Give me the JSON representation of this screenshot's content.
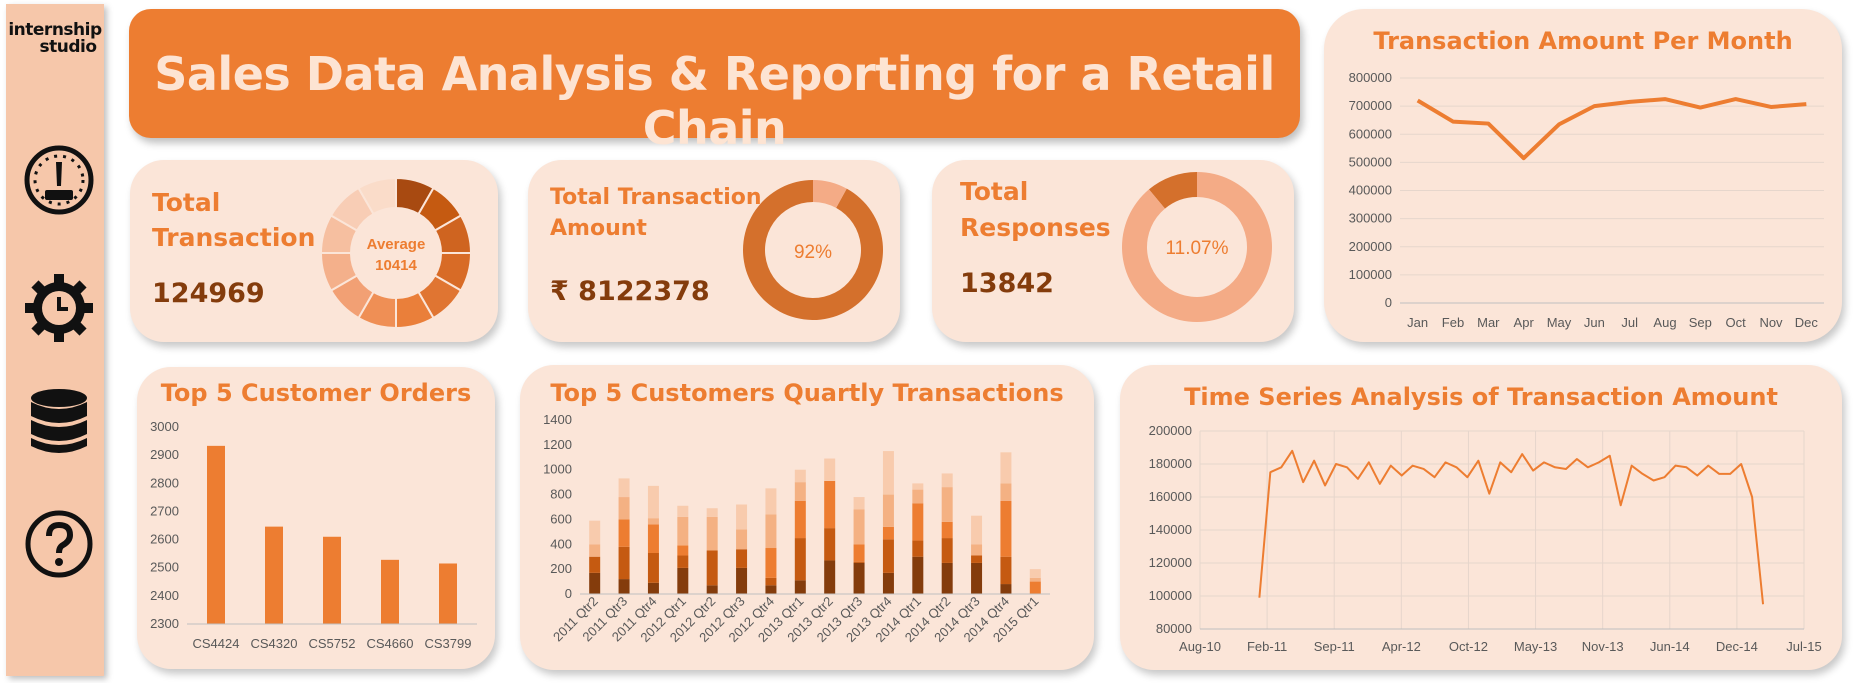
{
  "app": {
    "title": "Sales Data Analysis & Reporting for a Retail Chain",
    "logo_line1": "internship",
    "logo_line2": "studio"
  },
  "sidebar": {
    "icons": [
      "dashboard-gauge-icon",
      "settings-clock-icon",
      "database-icon",
      "help-icon"
    ]
  },
  "colors": {
    "accent": "#ed7d31",
    "dark": "#843c0c",
    "card": "#fbe5d8",
    "sidebar": "#f6c7aa",
    "title_text": "#fde4d3"
  },
  "kpis": {
    "total_transaction": {
      "label_line1": "Total",
      "label_line2": "Transaction",
      "value": "124969",
      "center_line1": "Average",
      "center_line2": "10414"
    },
    "total_amount": {
      "label_line1": "Total Transaction",
      "label_line2": "Amount",
      "value": "₹ 8122378",
      "center": "92%",
      "fraction": 0.92
    },
    "total_responses": {
      "label_line1": "Total",
      "label_line2": "Responses",
      "value": "13842",
      "center": "11.07%",
      "fraction": 0.1107
    }
  },
  "chart_data": [
    {
      "id": "monthly",
      "type": "line",
      "title": "Transaction Amount Per Month",
      "categories": [
        "Jan",
        "Feb",
        "Mar",
        "Apr",
        "May",
        "Jun",
        "Jul",
        "Aug",
        "Sep",
        "Oct",
        "Nov",
        "Dec"
      ],
      "values": [
        720000,
        645000,
        638000,
        515000,
        635000,
        700000,
        715000,
        725000,
        695000,
        725000,
        697000,
        707000
      ],
      "ylim": [
        0,
        800000
      ],
      "yticks": [
        "0",
        "100000",
        "200000",
        "300000",
        "400000",
        "500000",
        "600000",
        "700000",
        "800000"
      ],
      "grid": true,
      "color": "#ed7d31"
    },
    {
      "id": "top5",
      "type": "bar",
      "title": "Top 5 Customer Orders",
      "categories": [
        "CS4424",
        "CS4320",
        "CS5752",
        "CS4660",
        "CS3799"
      ],
      "values": [
        2933,
        2646,
        2610,
        2528,
        2515
      ],
      "ylim": [
        2300,
        3000
      ],
      "yticks": [
        "2300",
        "2400",
        "2500",
        "2600",
        "2700",
        "2800",
        "2900",
        "3000"
      ],
      "color": "#ed7d31"
    },
    {
      "id": "quarterly",
      "type": "bar",
      "stacked": true,
      "title": "Top 5 Customers Quartly Transactions",
      "categories": [
        "2011 Qtr2",
        "2011 Qtr3",
        "2011 Qtr4",
        "2012 Qtr1",
        "2012 Qtr2",
        "2012 Qtr3",
        "2012 Qtr4",
        "2013 Qtr1",
        "2013 Qtr2",
        "2013 Qtr3",
        "2013 Qtr4",
        "2014 Qtr1",
        "2014 Qtr2",
        "2014 Qtr3",
        "2014 Qtr4",
        "2015 Qtr1"
      ],
      "series": [
        {
          "values": [
            170,
            120,
            90,
            210,
            70,
            210,
            70,
            110,
            270,
            250,
            170,
            300,
            250,
            250,
            80,
            0
          ],
          "color": "#843c0c"
        },
        {
          "values": [
            130,
            260,
            240,
            100,
            280,
            150,
            60,
            340,
            260,
            10,
            270,
            130,
            200,
            60,
            220,
            0
          ],
          "color": "#c55a11"
        },
        {
          "values": [
            0,
            220,
            230,
            80,
            0,
            0,
            240,
            300,
            380,
            140,
            100,
            300,
            130,
            0,
            450,
            100
          ],
          "color": "#ed7d31"
        },
        {
          "values": [
            100,
            180,
            50,
            230,
            270,
            160,
            270,
            150,
            0,
            280,
            260,
            110,
            280,
            90,
            140,
            30
          ],
          "color": "#f4b183"
        },
        {
          "values": [
            190,
            150,
            260,
            90,
            70,
            200,
            210,
            100,
            180,
            100,
            350,
            50,
            110,
            230,
            250,
            70
          ],
          "color": "#f8cbad"
        }
      ],
      "ylim": [
        0,
        1400
      ],
      "yticks": [
        "0",
        "200",
        "400",
        "600",
        "800",
        "1000",
        "1200",
        "1400"
      ]
    },
    {
      "id": "timeseries",
      "type": "line",
      "title": "Time Series Analysis of Transaction Amount",
      "x_start": "2011-01",
      "x_end": "2015-03",
      "xlim_labels": [
        "Aug-10",
        "Feb-11",
        "Sep-11",
        "Apr-12",
        "Oct-12",
        "May-13",
        "Nov-13",
        "Jun-14",
        "Dec-14",
        "Jul-15"
      ],
      "values": [
        99000,
        175000,
        178000,
        188000,
        169000,
        182000,
        167000,
        180000,
        178000,
        171000,
        181000,
        168000,
        179000,
        173000,
        179000,
        177000,
        172000,
        181000,
        178000,
        172000,
        182000,
        162000,
        181000,
        175000,
        186000,
        176000,
        181000,
        178000,
        177000,
        183000,
        178000,
        181000,
        185000,
        155000,
        179000,
        174000,
        170000,
        172000,
        179000,
        178000,
        173000,
        179000,
        174000,
        174000,
        180000,
        160000,
        95000
      ],
      "ylim": [
        80000,
        200000
      ],
      "yticks": [
        "80000",
        "100000",
        "120000",
        "140000",
        "160000",
        "180000",
        "200000"
      ],
      "grid": true,
      "color": "#ed7d31"
    }
  ],
  "donut1_segments": [
    0.085,
    0.085,
    0.085,
    0.085,
    0.085,
    0.085,
    0.085,
    0.085,
    0.085,
    0.085,
    0.085,
    0.085
  ],
  "donut1_colors": [
    "#a84a11",
    "#c55a11",
    "#cf6420",
    "#d86b26",
    "#e07532",
    "#ea7f3a",
    "#ef8f55",
    "#f2a074",
    "#f4b08b",
    "#f6bfa0",
    "#f8cdb5",
    "#fadcc9"
  ]
}
